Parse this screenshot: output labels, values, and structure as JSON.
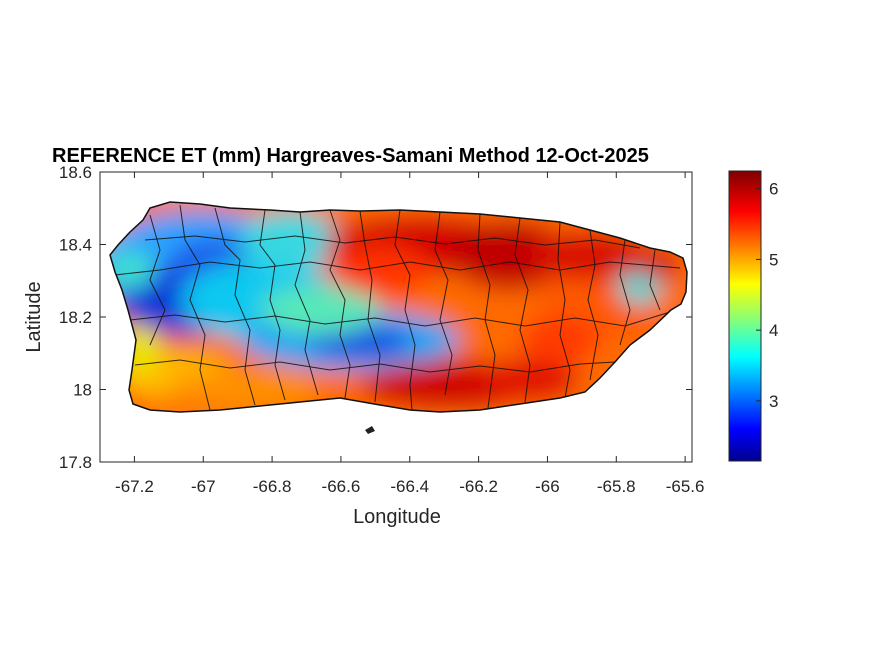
{
  "figure": {
    "title": "REFERENCE ET (mm) Hargreaves-Samani Method  12-Oct-2025",
    "xlabel": "Longitude",
    "ylabel": "Latitude"
  },
  "map": {
    "region": "Puerto Rico",
    "x_ticks": [
      "-67.2",
      "-67",
      "-66.8",
      "-66.6",
      "-66.4",
      "-66.2",
      "-66",
      "-65.8",
      "-65.6"
    ],
    "y_ticks": [
      "18.6",
      "18.4",
      "18.2",
      "18",
      "17.8"
    ],
    "xlim": [
      -67.3,
      -65.58
    ],
    "ylim": [
      17.8,
      18.6
    ],
    "colormap": "jet",
    "municipality_borders": true
  },
  "colorbar": {
    "ticks": [
      "6",
      "5",
      "4",
      "3"
    ],
    "range": [
      2.15,
      6.25
    ],
    "colors": [
      "#00008f",
      "#0000ff",
      "#007fff",
      "#00ffff",
      "#7fff7f",
      "#ffff00",
      "#ff7f00",
      "#ff0000",
      "#7f0000"
    ]
  }
}
